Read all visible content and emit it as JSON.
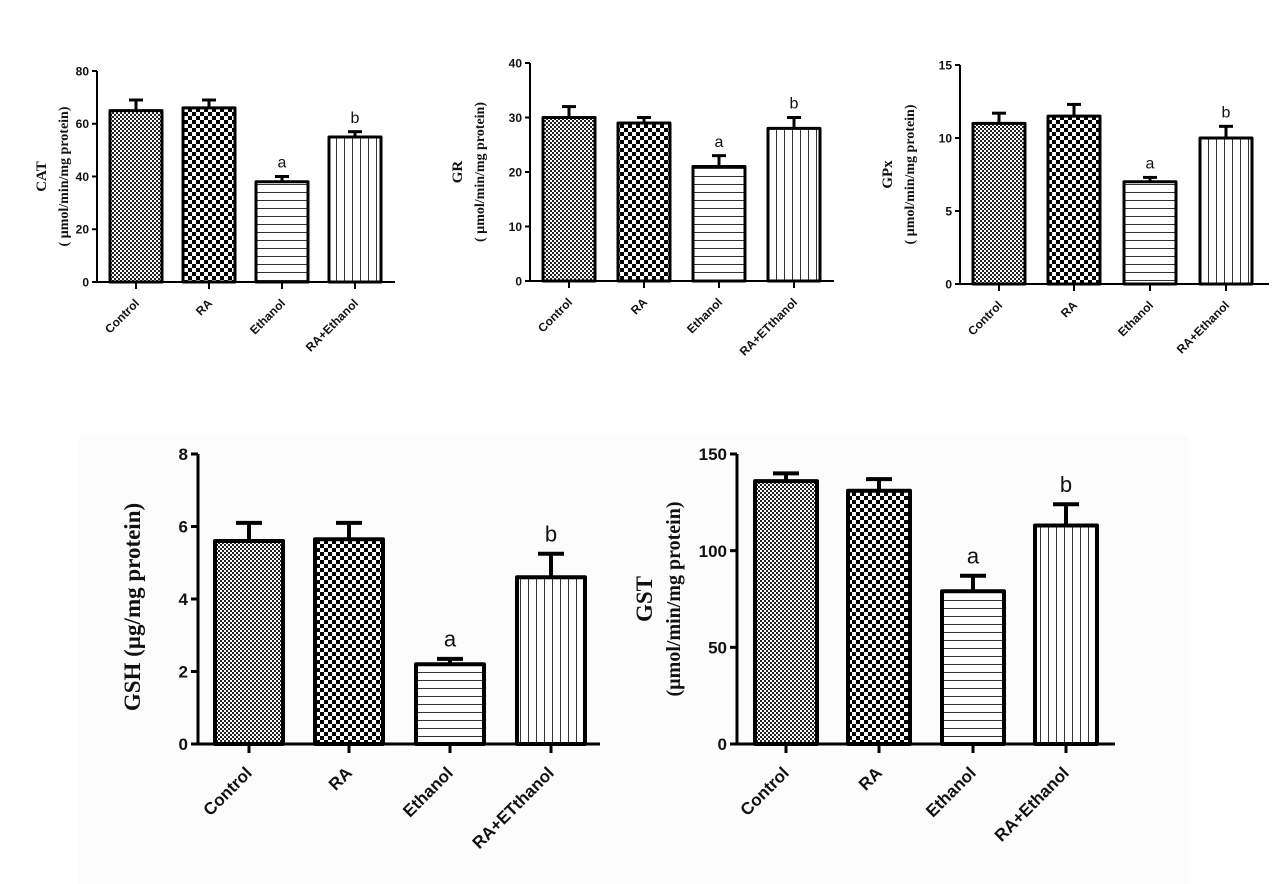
{
  "chart_data": [
    {
      "type": "bar",
      "id": "cat",
      "title": "",
      "ylabel": "CAT",
      "ylabel_unit": "( µmol/min/mg protein)",
      "xlabel": "",
      "categories": [
        "Control",
        "RA",
        "Ethanol",
        "RA+Ethanol"
      ],
      "values": [
        65,
        66,
        38,
        55
      ],
      "errors": [
        4,
        3,
        2,
        2
      ],
      "significance": [
        "",
        "",
        "a",
        "b"
      ],
      "patterns": [
        "fine-check",
        "coarse-check",
        "horizontal-lines",
        "vertical-lines"
      ],
      "ylim": [
        0,
        80
      ],
      "yticks": [
        0,
        20,
        40,
        60,
        80
      ],
      "grid": false
    },
    {
      "type": "bar",
      "id": "gr",
      "title": "",
      "ylabel": "GR",
      "ylabel_unit": "( µmol/min/mg protein)",
      "xlabel": "",
      "categories": [
        "Control",
        "RA",
        "Ethanol",
        "RA+ETthanol"
      ],
      "values": [
        30,
        29,
        21,
        28
      ],
      "errors": [
        2,
        1,
        2,
        2
      ],
      "significance": [
        "",
        "",
        "a",
        "b"
      ],
      "patterns": [
        "fine-check",
        "coarse-check",
        "horizontal-lines",
        "vertical-lines"
      ],
      "ylim": [
        0,
        40
      ],
      "yticks": [
        0,
        10,
        20,
        30,
        40
      ],
      "grid": false
    },
    {
      "type": "bar",
      "id": "gpx",
      "title": "",
      "ylabel": "GPx",
      "ylabel_unit": "( µmol/min/mg protein)",
      "xlabel": "",
      "categories": [
        "Control",
        "RA",
        "Ethanol",
        "RA+Ethanol"
      ],
      "values": [
        11,
        11.5,
        7,
        10
      ],
      "errors": [
        0.7,
        0.8,
        0.3,
        0.8
      ],
      "significance": [
        "",
        "",
        "a",
        "b"
      ],
      "patterns": [
        "fine-check",
        "coarse-check",
        "horizontal-lines",
        "vertical-lines"
      ],
      "ylim": [
        0,
        15
      ],
      "yticks": [
        0,
        5,
        10,
        15
      ],
      "grid": false
    },
    {
      "type": "bar",
      "id": "gsh",
      "title": "",
      "ylabel": "GSH (µg/mg protein)",
      "ylabel_unit": "",
      "xlabel": "",
      "categories": [
        "Control",
        "RA",
        "Ethanol",
        "RA+ETthanol"
      ],
      "values": [
        5.6,
        5.65,
        2.2,
        4.6
      ],
      "errors": [
        0.5,
        0.45,
        0.15,
        0.65
      ],
      "significance": [
        "",
        "",
        "a",
        "b"
      ],
      "patterns": [
        "fine-check",
        "coarse-check",
        "horizontal-lines",
        "vertical-lines"
      ],
      "ylim": [
        0,
        8
      ],
      "yticks": [
        0,
        2,
        4,
        6,
        8
      ],
      "grid": false
    },
    {
      "type": "bar",
      "id": "gst",
      "title": "",
      "ylabel": "GST",
      "ylabel_unit": "(µmol/min/mg protein)",
      "xlabel": "",
      "categories": [
        "Control",
        "RA",
        "Ethanol",
        "RA+Ethanol"
      ],
      "values": [
        136,
        131,
        79,
        113
      ],
      "errors": [
        4,
        6,
        8,
        11
      ],
      "significance": [
        "",
        "",
        "a",
        "b"
      ],
      "patterns": [
        "fine-check",
        "coarse-check",
        "horizontal-lines",
        "vertical-lines"
      ],
      "ylim": [
        0,
        150
      ],
      "yticks": [
        0,
        50,
        100,
        150
      ],
      "grid": false
    }
  ]
}
